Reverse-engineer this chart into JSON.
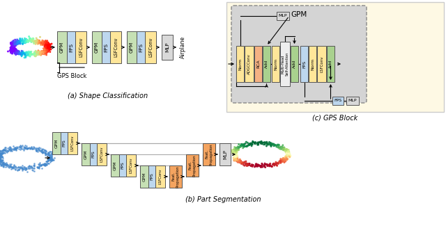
{
  "C_GREEN": "#c6e0b4",
  "C_BLUE": "#bdd7ee",
  "C_YELLOW": "#ffe699",
  "C_GRAY": "#d9d9d9",
  "C_ADD": "#a9d18e",
  "C_PEACH": "#f4b183",
  "C_FP": "#f4a460",
  "C_MHSA": "#eeeeee",
  "panel_a": "(a) Shape Classification",
  "panel_b": "(b) Part Segmentation",
  "panel_c": "(c) GPS Block",
  "gps_block": "GPS Block",
  "gpm_label": "GPM"
}
